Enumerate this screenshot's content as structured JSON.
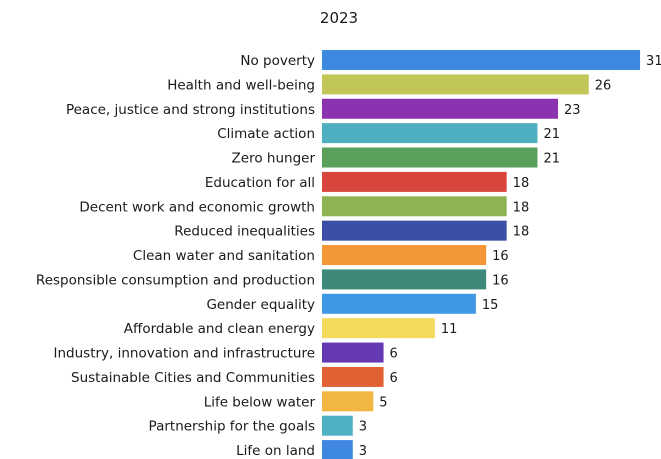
{
  "chart_data": {
    "type": "bar",
    "orientation": "horizontal",
    "title": "2023",
    "xlabel": "",
    "ylabel": "",
    "xlim": [
      0,
      31
    ],
    "grid": false,
    "legend": "none",
    "categories": [
      "No poverty",
      "Health and well-being",
      "Peace, justice and strong institutions",
      "Climate action",
      "Zero hunger",
      "Education for all",
      "Decent work and economic growth",
      "Reduced inequalities",
      "Clean water and sanitation",
      "Responsible consumption and production",
      "Gender equality",
      "Affordable and clean energy",
      "Industry, innovation and infrastructure",
      "Sustainable Cities and Communities",
      "Life below water",
      "Partnership for the goals",
      "Life on land"
    ],
    "values": [
      31,
      26,
      23,
      21,
      21,
      18,
      18,
      18,
      16,
      16,
      15,
      11,
      6,
      6,
      5,
      3,
      3
    ],
    "colors": [
      "#3f88e2",
      "#c2c657",
      "#8a32b0",
      "#4eafc1",
      "#5aa05a",
      "#d9463e",
      "#8fb352",
      "#3b4fa7",
      "#f39636",
      "#3d8a7b",
      "#3f97e6",
      "#f4d95b",
      "#6539b1",
      "#e06133",
      "#f2b642",
      "#4cb1c2",
      "#3f88e2"
    ]
  }
}
